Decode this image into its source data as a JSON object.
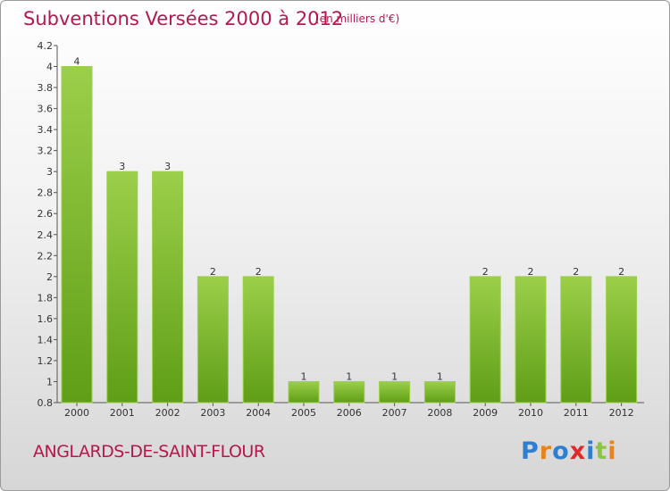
{
  "header": {
    "title": "Subventions Versées 2000 à 2012",
    "subtitle": "(en milliers d'€)"
  },
  "footer": {
    "commune": "ANGLARDS-DE-SAINT-FLOUR",
    "logo": "Proxiti",
    "logo_colors": [
      "#2e7fd0",
      "#e8841c",
      "#2e7fd0",
      "#e02a2a",
      "#2e7fd0",
      "#8cc63f",
      "#e8841c"
    ]
  },
  "colors": {
    "bar_fill": "#7fbd2f",
    "bar_fill_light": "#9ccf4a",
    "bar_fill_dark": "#5f9e16",
    "title": "#b5174f"
  },
  "chart_data": {
    "type": "bar",
    "categories": [
      "2000",
      "2001",
      "2002",
      "2003",
      "2004",
      "2005",
      "2006",
      "2007",
      "2008",
      "2009",
      "2010",
      "2011",
      "2012"
    ],
    "values": [
      4,
      3,
      3,
      2,
      2,
      1,
      1,
      1,
      1,
      2,
      2,
      2,
      2
    ],
    "value_labels": [
      "4",
      "3",
      "3",
      "2",
      "2",
      "1",
      "1",
      "1",
      "1",
      "2",
      "2",
      "2",
      "2"
    ],
    "ylim": [
      0.8,
      4.2
    ],
    "yticks": [
      "0.8",
      "1",
      "1.2",
      "1.4",
      "1.6",
      "1.8",
      "2",
      "2.2",
      "2.4",
      "2.6",
      "2.8",
      "3",
      "3.2",
      "3.4",
      "3.6",
      "3.8",
      "4",
      "4.2"
    ],
    "title": "Subventions Versées 2000 à 2012",
    "xlabel": "",
    "ylabel": "",
    "grid": false,
    "legend": "none"
  }
}
